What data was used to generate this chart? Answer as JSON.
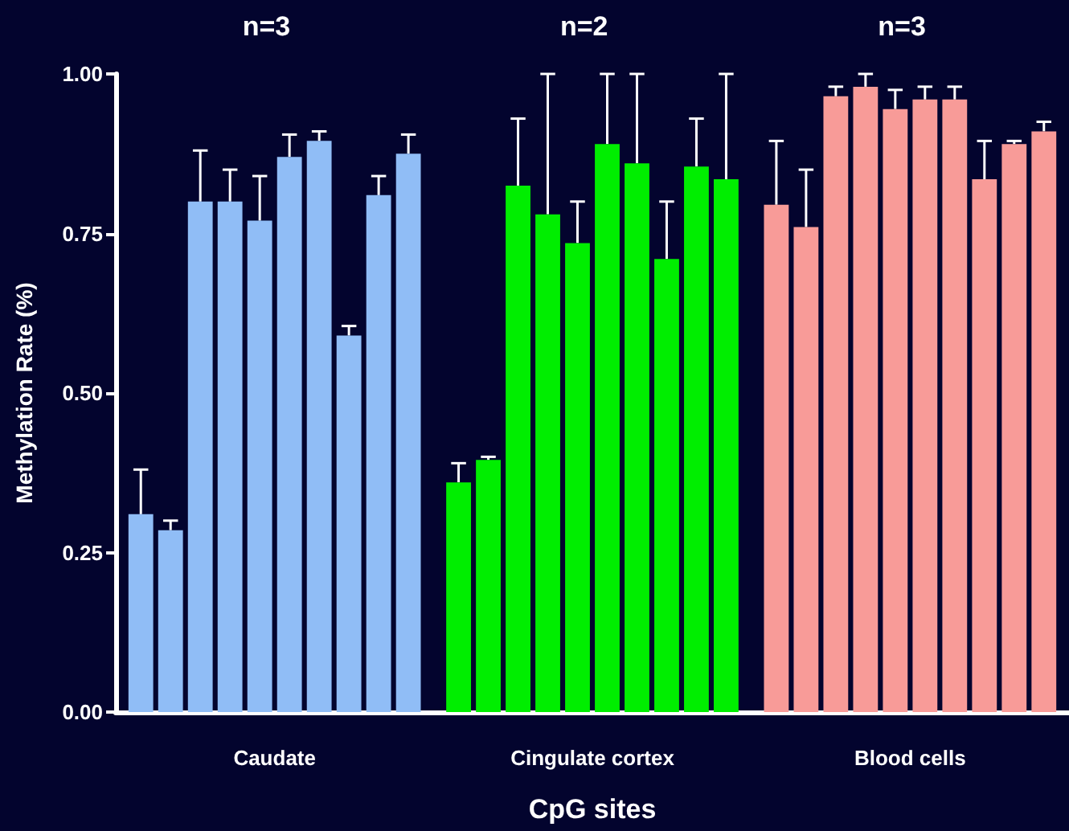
{
  "chart_data": {
    "type": "bar",
    "ylabel": "Methylation Rate (%)",
    "xlabel": "CpG sites",
    "annotations": [
      "n=3",
      "n=2",
      "n=3"
    ],
    "categories": [
      "Caudate",
      "Cingulate cortex",
      "Blood cells"
    ],
    "ylim": [
      0,
      1
    ],
    "yticks": [
      {
        "value": 0,
        "label": "0.00"
      },
      {
        "value": 0.25,
        "label": "0.25"
      },
      {
        "value": 0.5,
        "label": "0.50"
      },
      {
        "value": 0.75,
        "label": "0.75"
      },
      {
        "value": 1,
        "label": "1.00"
      }
    ],
    "series": [
      {
        "colors": [
          "#90bdf6",
          "#00ee00",
          "#f89b98"
        ],
        "values": [
          0.31,
          0.36,
          0.795
        ],
        "errors": [
          [
            0.31,
            0.38
          ],
          [
            0.36,
            0.39
          ],
          [
            0.795,
            0.895
          ]
        ]
      },
      {
        "colors": [
          "#90bdf6",
          "#00ee00",
          "#f89b98"
        ],
        "values": [
          0.285,
          0.395,
          0.76
        ],
        "errors": [
          [
            0.285,
            0.3
          ],
          [
            0.395,
            0.4
          ],
          [
            0.76,
            0.85
          ]
        ]
      },
      {
        "colors": [
          "#90bdf6",
          "#00ee00",
          "#f89b98"
        ],
        "values": [
          0.8,
          0.825,
          0.965
        ],
        "errors": [
          [
            0.8,
            0.88
          ],
          [
            0.825,
            0.93
          ],
          [
            0.965,
            0.98
          ]
        ]
      },
      {
        "colors": [
          "#90bdf6",
          "#00ee00",
          "#f89b98"
        ],
        "values": [
          0.8,
          0.78,
          0.98
        ],
        "errors": [
          [
            0.8,
            0.85
          ],
          [
            0.78,
            1.0
          ],
          [
            0.98,
            1.0
          ]
        ]
      },
      {
        "colors": [
          "#90bdf6",
          "#00ee00",
          "#f89b98"
        ],
        "values": [
          0.77,
          0.735,
          0.945
        ],
        "errors": [
          [
            0.77,
            0.84
          ],
          [
            0.735,
            0.8
          ],
          [
            0.945,
            0.975
          ]
        ]
      },
      {
        "colors": [
          "#90bdf6",
          "#00ee00",
          "#f89b98"
        ],
        "values": [
          0.87,
          0.89,
          0.96
        ],
        "errors": [
          [
            0.87,
            0.905
          ],
          [
            0.89,
            1.0
          ],
          [
            0.96,
            0.98
          ]
        ]
      },
      {
        "colors": [
          "#90bdf6",
          "#00ee00",
          "#f89b98"
        ],
        "values": [
          0.895,
          0.86,
          0.96
        ],
        "errors": [
          [
            0.895,
            0.91
          ],
          [
            0.86,
            1.0
          ],
          [
            0.96,
            0.98
          ]
        ]
      },
      {
        "colors": [
          "#90bdf6",
          "#00ee00",
          "#f89b98"
        ],
        "values": [
          0.59,
          0.71,
          0.835
        ],
        "errors": [
          [
            0.59,
            0.605
          ],
          [
            0.71,
            0.8
          ],
          [
            0.835,
            0.895
          ]
        ]
      },
      {
        "colors": [
          "#90bdf6",
          "#00ee00",
          "#f89b98"
        ],
        "values": [
          0.81,
          0.855,
          0.89
        ],
        "errors": [
          [
            0.81,
            0.84
          ],
          [
            0.855,
            0.93
          ],
          [
            0.89,
            0.895
          ]
        ]
      },
      {
        "colors": [
          "#90bdf6",
          "#00ee00",
          "#f89b98"
        ],
        "values": [
          0.875,
          0.835,
          0.91
        ],
        "errors": [
          [
            0.875,
            0.905
          ],
          [
            0.835,
            1.0
          ],
          [
            0.91,
            0.925
          ]
        ]
      }
    ]
  }
}
